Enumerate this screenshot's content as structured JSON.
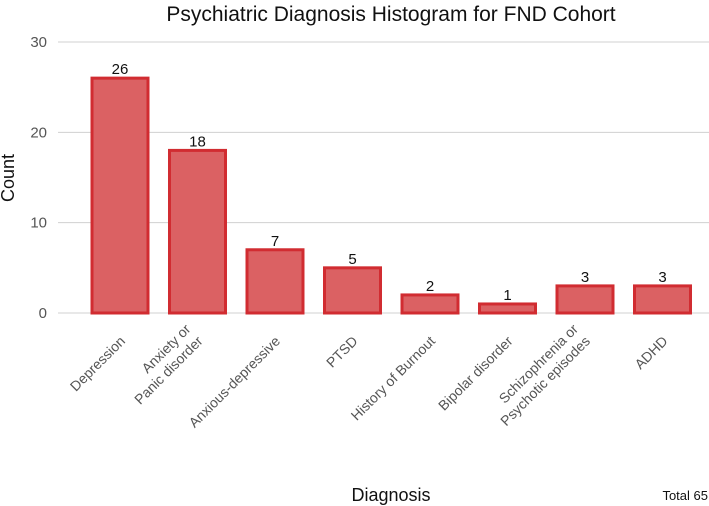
{
  "chart_data": {
    "type": "bar",
    "title": "Psychiatric Diagnosis Histogram for FND Cohort",
    "xlabel": "Diagnosis",
    "ylabel": "Count",
    "categories": [
      [
        "Depression"
      ],
      [
        "Anxiety or",
        "Panic disorder"
      ],
      [
        "Anxious-depressive"
      ],
      [
        "PTSD"
      ],
      [
        "History of Burnout"
      ],
      [
        "Bipolar disorder"
      ],
      [
        "Schizophrenia or",
        "Psychotic episodes"
      ],
      [
        "ADHD"
      ]
    ],
    "values": [
      26,
      18,
      7,
      5,
      2,
      1,
      3,
      3
    ],
    "ylim": [
      0,
      30
    ],
    "yticks": [
      0,
      10,
      20,
      30
    ],
    "grid": true,
    "legend": "none",
    "bar_fill": "#db6163",
    "bar_stroke": "#d12c31",
    "annotation": "Total 65"
  }
}
